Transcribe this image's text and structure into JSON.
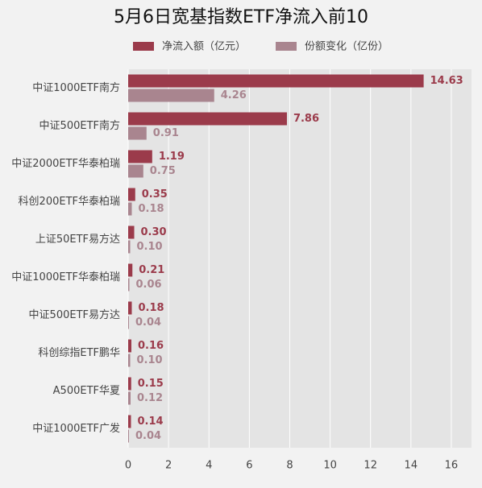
{
  "chart_data": {
    "type": "bar",
    "orientation": "horizontal",
    "title": "5月6日宽基指数ETF净流入前10",
    "categories": [
      "中证1000ETF南方",
      "中证500ETF南方",
      "中证2000ETF华泰柏瑞",
      "科创200ETF华泰柏瑞",
      "上证50ETF易方达",
      "中证1000ETF华泰柏瑞",
      "中证500ETF易方达",
      "科创综指ETF鹏华",
      "A500ETF华夏",
      "中证1000ETF广发"
    ],
    "series": [
      {
        "name": "净流入额（亿元）",
        "color": "#9b3b4b",
        "values": [
          14.63,
          7.86,
          1.19,
          0.35,
          0.3,
          0.21,
          0.18,
          0.16,
          0.15,
          0.14
        ],
        "value_labels": [
          "14.63",
          "7.86",
          "1.19",
          "0.35",
          "0.30",
          "0.21",
          "0.18",
          "0.16",
          "0.15",
          "0.14"
        ]
      },
      {
        "name": "份额变化（亿份）",
        "color": "#a9858f",
        "values": [
          4.26,
          0.91,
          0.75,
          0.18,
          0.1,
          0.06,
          0.04,
          0.1,
          0.12,
          0.04
        ],
        "value_labels": [
          "4.26",
          "0.91",
          "0.75",
          "0.18",
          "0.10",
          "0.06",
          "0.04",
          "0.10",
          "0.12",
          "0.04"
        ]
      }
    ],
    "xlim": [
      0,
      17
    ],
    "xticks": [
      0,
      2,
      4,
      6,
      8,
      10,
      12,
      14,
      16
    ],
    "grid": true
  }
}
